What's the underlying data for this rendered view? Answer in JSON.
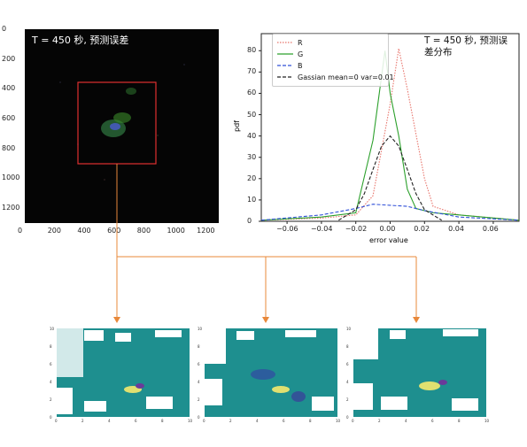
{
  "error_image": {
    "title": "T = 450 秒, 预测误差",
    "x_ticks": [
      "0",
      "200",
      "400",
      "600",
      "800",
      "1000",
      "1200"
    ],
    "y_ticks": [
      "0",
      "200",
      "400",
      "600",
      "800",
      "1000",
      "1200"
    ]
  },
  "chart_data": {
    "type": "line",
    "title": "T = 450 秒, 预测误差分布",
    "title_line1": "T = 450 秒, 预测误",
    "title_line2": "差分布",
    "xlabel": "error value",
    "ylabel": "pdf",
    "xlim": [
      -0.075,
      0.075
    ],
    "ylim": [
      0,
      88
    ],
    "x_ticks": [
      "−0.06",
      "−0.04",
      "−0.02",
      "0.00",
      "0.02",
      "0.04",
      "0.06"
    ],
    "y_ticks": [
      "0",
      "10",
      "20",
      "30",
      "40",
      "50",
      "60",
      "70",
      "80"
    ],
    "legend_position": "upper-left",
    "series": [
      {
        "name": "R",
        "color": "#e8746b",
        "style": "dotted",
        "x": [
          -0.075,
          -0.04,
          -0.02,
          -0.01,
          0.0,
          0.005,
          0.01,
          0.02,
          0.025,
          0.04,
          0.075
        ],
        "y": [
          0.5,
          1.5,
          3,
          12,
          55,
          81,
          62,
          20,
          7,
          3,
          0.5
        ]
      },
      {
        "name": "G",
        "color": "#2ca02c",
        "style": "solid",
        "x": [
          -0.075,
          -0.04,
          -0.02,
          -0.01,
          -0.003,
          0.0,
          0.005,
          0.01,
          0.015,
          0.02,
          0.025,
          0.04,
          0.075
        ],
        "y": [
          0.5,
          2,
          4,
          38,
          80,
          60,
          40,
          15,
          6,
          5,
          4,
          3,
          0.5
        ]
      },
      {
        "name": "B",
        "color": "#3050d8",
        "style": "dashed",
        "x": [
          -0.075,
          -0.04,
          -0.02,
          -0.01,
          0.0,
          0.01,
          0.02,
          0.04,
          0.075
        ],
        "y": [
          0.5,
          3,
          6,
          8,
          7.5,
          7,
          5,
          2,
          0.5
        ]
      },
      {
        "name": "Gassian mean=0 var=0.01",
        "color": "#222222",
        "style": "dashed",
        "x": [
          -0.03,
          -0.02,
          -0.015,
          -0.01,
          -0.005,
          0.0,
          0.005,
          0.01,
          0.015,
          0.02,
          0.03
        ],
        "y": [
          0.5,
          5.4,
          13.0,
          24.3,
          35.3,
          40.0,
          35.3,
          24.3,
          13.0,
          5.4,
          0.5
        ]
      }
    ]
  },
  "crops": [
    {
      "x_ticks": [
        "0",
        "2",
        "4",
        "6",
        "8",
        "10"
      ],
      "y_ticks": [
        "10",
        "8",
        "6",
        "4",
        "2",
        "0"
      ]
    },
    {
      "x_ticks": [
        "0",
        "2",
        "4",
        "6",
        "8",
        "10"
      ],
      "y_ticks": [
        "10",
        "8",
        "6",
        "4",
        "2",
        "0"
      ]
    },
    {
      "x_ticks": [
        "0",
        "2",
        "4",
        "6",
        "8",
        "10"
      ],
      "y_ticks": [
        "10",
        "8",
        "6",
        "4",
        "2",
        "0"
      ]
    }
  ],
  "colors": {
    "connector": "#e8883a",
    "zoom_box": "#e03030",
    "crop_base": "#1e8f8f"
  }
}
